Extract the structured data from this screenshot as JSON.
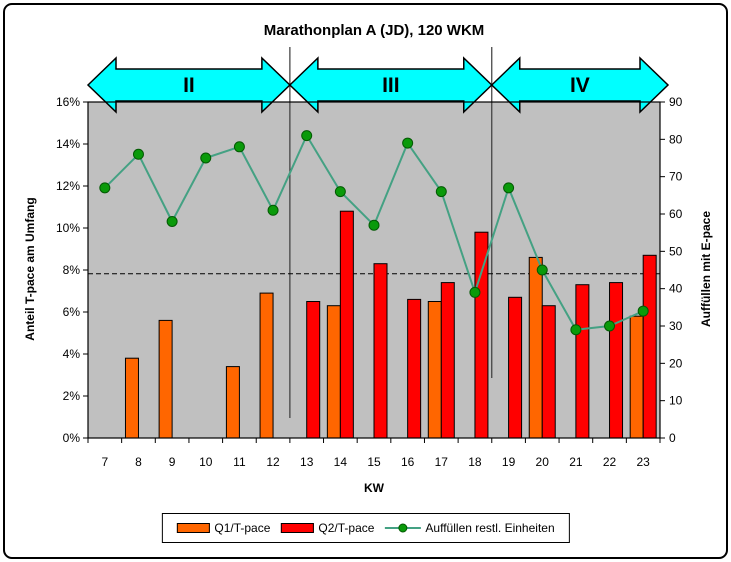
{
  "frame": {
    "border_color": "#000000",
    "background": "#ffffff"
  },
  "chart_data": {
    "type": "combo-bar-line",
    "title": "Marathonplan A (JD), 120 WKM",
    "xlabel": "KW",
    "plot_bg": "#c0c0c0",
    "categories": [
      7,
      8,
      9,
      10,
      11,
      12,
      13,
      14,
      15,
      16,
      17,
      18,
      19,
      20,
      21,
      22,
      23
    ],
    "left_axis": {
      "title": "Anteil T-pace am Umfang",
      "min": 0,
      "max": 16,
      "step": 2,
      "suffix": "%"
    },
    "right_axis": {
      "title": "Auffüllen mit E-pace",
      "min": 0,
      "max": 90,
      "step": 10
    },
    "reference_line": {
      "axis": "right",
      "value": 44,
      "style": "dashed",
      "color": "#000000"
    },
    "phase_arrow_color": "#00ffff",
    "phases": [
      {
        "label": "II",
        "from_category": 7,
        "to_category": 12
      },
      {
        "label": "III",
        "from_category": 13,
        "to_category": 18
      },
      {
        "label": "IV",
        "from_category": 19,
        "to_category": 23
      }
    ],
    "series": [
      {
        "name": "Q1/T-pace",
        "type": "bar",
        "axis": "left",
        "color": "#ff6600",
        "values": [
          null,
          3.8,
          5.6,
          null,
          3.4,
          6.9,
          null,
          6.3,
          null,
          null,
          6.5,
          null,
          null,
          8.6,
          null,
          null,
          5.8
        ]
      },
      {
        "name": "Q2/T-pace",
        "type": "bar",
        "axis": "left",
        "color": "#ff0000",
        "values": [
          null,
          null,
          null,
          null,
          null,
          null,
          6.5,
          10.8,
          8.3,
          6.6,
          7.4,
          9.8,
          6.7,
          6.3,
          7.3,
          7.4,
          8.7
        ]
      },
      {
        "name": "Auffüllen restl. Einheiten",
        "type": "line",
        "axis": "right",
        "color": "#44a183",
        "marker_color": "#0a9a0a",
        "values": [
          67,
          76,
          58,
          75,
          78,
          61,
          81,
          66,
          57,
          79,
          66,
          39,
          67,
          45,
          29,
          30,
          34
        ]
      }
    ]
  }
}
